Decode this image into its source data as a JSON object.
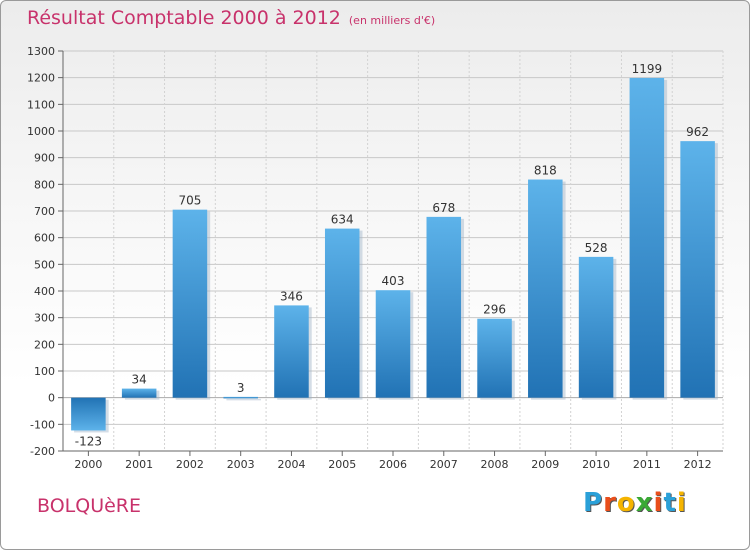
{
  "title": "Résultat Comptable 2000 à 2012",
  "unit": "(en milliers d'€)",
  "commune": "BOLQUèRE",
  "logo": {
    "letters": [
      "P",
      "r",
      "o",
      "x",
      "i",
      "t",
      "i"
    ],
    "colors": [
      "#2aa0d8",
      "#e94e1b",
      "#f5b400",
      "#3aa935",
      "#e94e1b",
      "#2aa0d8",
      "#f5b400"
    ]
  },
  "colors": {
    "title": "#c8326b",
    "bar_top": "#5db3ea",
    "bar_bottom": "#2172b4",
    "grid": "#c8c8c8"
  },
  "chart_data": {
    "type": "bar",
    "title": "Résultat Comptable 2000 à 2012",
    "subtitle": "(en milliers d'€)",
    "categories": [
      "2000",
      "2001",
      "2002",
      "2003",
      "2004",
      "2005",
      "2006",
      "2007",
      "2008",
      "2009",
      "2010",
      "2011",
      "2012"
    ],
    "values": [
      -123,
      34,
      705,
      3,
      346,
      634,
      403,
      678,
      296,
      818,
      528,
      1199,
      962
    ],
    "ylim": [
      -200,
      1300
    ],
    "yticks": [
      -200,
      -100,
      0,
      100,
      200,
      300,
      400,
      500,
      600,
      700,
      800,
      900,
      1000,
      1100,
      1200,
      1300
    ],
    "grid": true,
    "data_labels": true
  }
}
